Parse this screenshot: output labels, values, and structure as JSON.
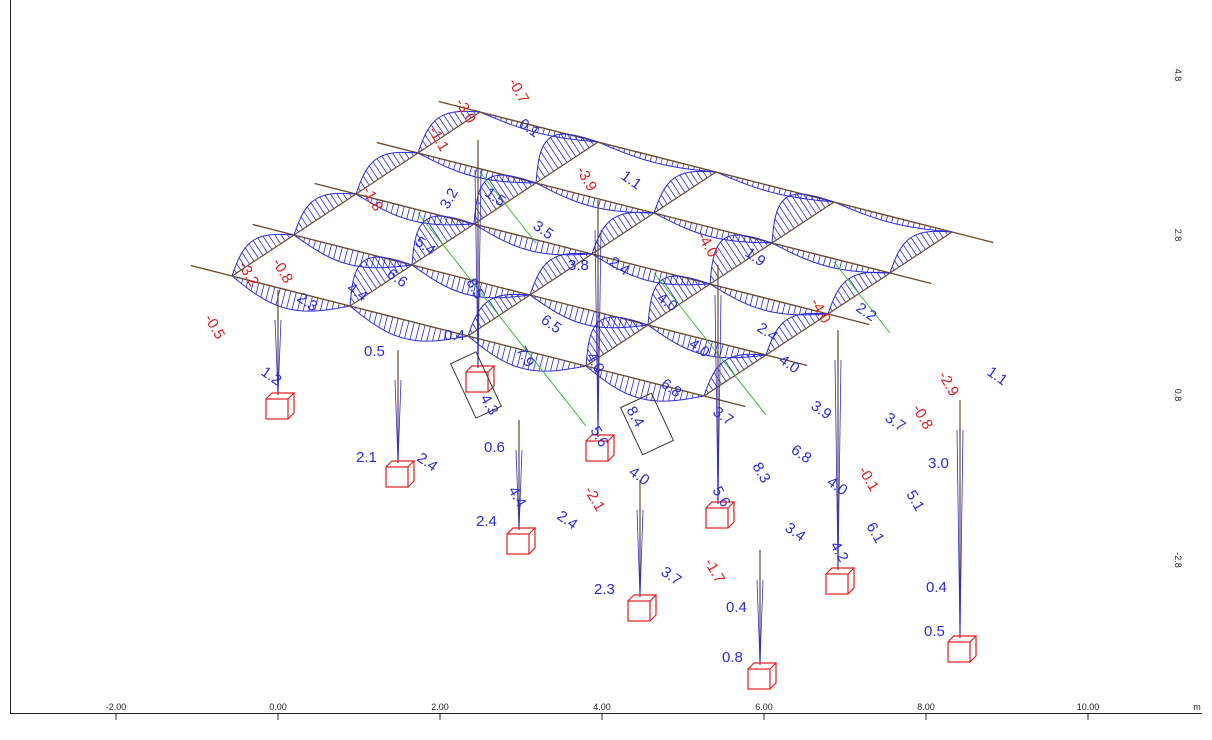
{
  "axes": {
    "x_ticks": [
      "-2.00",
      "0.00",
      "2.00",
      "4.00",
      "6.00",
      "8.00",
      "10.00"
    ],
    "x_unit": "m",
    "y_ticks": [
      "4.8",
      "2.8",
      "0.8",
      "-2.8"
    ]
  },
  "colors": {
    "positive": "#2b2bd8",
    "negative": "#e02020",
    "member": "#6b4a2a",
    "brace": "#33bb33",
    "support": "#e02020"
  },
  "labels": {
    "negative": [
      "-0.7",
      "-3.0",
      "-1.1",
      "-3.9",
      "-1.8",
      "-4.0",
      "-3.2",
      "-0.8",
      "-4.0",
      "-0.5",
      "-2.9",
      "-0.8",
      "-0.1",
      "-2.1",
      "-1.7"
    ],
    "positive": [
      "0.1",
      "1.1",
      "3.2",
      "1.5",
      "1.9",
      "5.4",
      "3.5",
      "3.8",
      "2.4",
      "2.2",
      "4.4",
      "6.6",
      "2.3",
      "8.5",
      "6.5",
      "4.0",
      "0.4",
      "7.9",
      "4.0",
      "4.0",
      "2.4",
      "4.0",
      "1.1",
      "1.2",
      "0.5",
      "4.3",
      "5.6",
      "6.8",
      "8.4",
      "3.9",
      "3.7",
      "2.4",
      "3.7",
      "6.8",
      "3.0",
      "2.1",
      "0.6",
      "4.0",
      "8.3",
      "4.0",
      "5.1",
      "2.4",
      "4.4",
      "5.6",
      "6.1",
      "2.4",
      "3.4",
      "4.2",
      "2.3",
      "3.7",
      "0.4",
      "0.4",
      "0.5",
      "0.8"
    ]
  }
}
